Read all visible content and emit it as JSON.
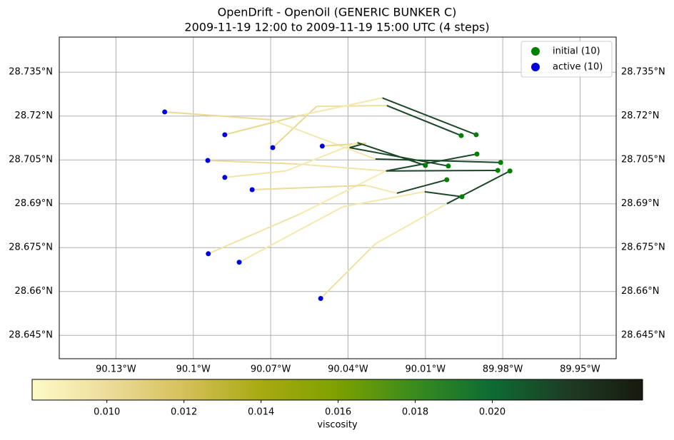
{
  "chart_data": {
    "type": "trajectory",
    "title": "OpenDrift - OpenOil (GENERIC BUNKER C)",
    "subtitle": "2009-11-19 12:00 to 2009-11-19 15:00 UTC (4 steps)",
    "xlim": [
      -90.152,
      -89.936
    ],
    "ylim": [
      28.637,
      28.747
    ],
    "xticks": [
      {
        "value": -90.13,
        "label": "90.13°W"
      },
      {
        "value": -90.1,
        "label": "90.1°W"
      },
      {
        "value": -90.07,
        "label": "90.07°W"
      },
      {
        "value": -90.04,
        "label": "90.04°W"
      },
      {
        "value": -90.01,
        "label": "90.01°W"
      },
      {
        "value": -89.98,
        "label": "89.98°W"
      },
      {
        "value": -89.95,
        "label": "89.95°W"
      }
    ],
    "yticks": [
      {
        "value": 28.645,
        "label": "28.645°N"
      },
      {
        "value": 28.66,
        "label": "28.66°N"
      },
      {
        "value": 28.675,
        "label": "28.675°N"
      },
      {
        "value": 28.69,
        "label": "28.69°N"
      },
      {
        "value": 28.705,
        "label": "28.705°N"
      },
      {
        "value": 28.72,
        "label": "28.72°N"
      },
      {
        "value": 28.735,
        "label": "28.735°N"
      }
    ],
    "grid": true,
    "legend": "upper right",
    "markers": [
      {
        "name": "initial (10)",
        "color": "#008000"
      },
      {
        "name": "active (10)",
        "color": "#0000dd"
      }
    ],
    "trajectories": [
      {
        "lon": [
          -89.9961,
          -90.025,
          -90.0522,
          -90.0692
        ],
        "lat": [
          28.7133,
          28.7236,
          28.7233,
          28.7092
        ],
        "viscosity": [
          0.0215,
          0.0098,
          0.0103,
          0.0105
        ]
      },
      {
        "lon": [
          -89.9903,
          -90.0267,
          -90.0586,
          -90.0878
        ],
        "lat": [
          28.7136,
          28.7262,
          28.7202,
          28.7136
        ],
        "viscosity": [
          0.0215,
          0.0092,
          0.0104,
          0.0106
        ]
      },
      {
        "lon": [
          -89.99,
          -90.0253,
          -90.0597,
          -90.0944
        ],
        "lat": [
          28.707,
          28.7012,
          28.7036,
          28.7048
        ],
        "viscosity": [
          0.0215,
          0.0095,
          0.0101,
          0.0106
        ]
      },
      {
        "lon": [
          -89.9808,
          -90.0294,
          -90.0697,
          -90.1111
        ],
        "lat": [
          28.7041,
          28.7053,
          28.7187,
          28.7214
        ],
        "viscosity": [
          0.0215,
          0.0093,
          0.0102,
          0.0105
        ]
      },
      {
        "lon": [
          -89.9819,
          -90.0253,
          -90.0586,
          -90.0942
        ],
        "lat": [
          28.7014,
          28.7012,
          28.6865,
          28.6729
        ],
        "viscosity": [
          0.0215,
          0.0091,
          0.0096,
          0.0103
        ]
      },
      {
        "lon": [
          -89.9772,
          -90.0017,
          -90.0294,
          -90.0506
        ],
        "lat": [
          28.7012,
          28.69,
          28.6763,
          28.6576
        ],
        "viscosity": [
          0.0215,
          0.0092,
          0.0097,
          0.0106
        ]
      },
      {
        "lon": [
          -90.0011,
          -90.0394,
          -90.0331,
          -90.05
        ],
        "lat": [
          28.7029,
          28.7092,
          28.7107,
          28.7097
        ],
        "viscosity": [
          0.0215,
          0.0215,
          0.0104,
          0.0104
        ]
      },
      {
        "lon": [
          -90.01,
          -90.0364,
          -90.0642,
          -90.0878
        ],
        "lat": [
          28.7031,
          28.7109,
          28.7012,
          28.699
        ],
        "viscosity": [
          0.0215,
          0.0092,
          0.0095,
          0.0104
        ]
      },
      {
        "lon": [
          -90.0017,
          -90.0211,
          -90.0331,
          -90.0772
        ],
        "lat": [
          28.6982,
          28.6936,
          28.6963,
          28.6948
        ],
        "viscosity": [
          0.0215,
          0.0093,
          0.0101,
          0.0105
        ]
      },
      {
        "lon": [
          -89.9958,
          -90.0103,
          -90.0419,
          -90.0822
        ],
        "lat": [
          28.6924,
          28.6941,
          28.689,
          28.67
        ],
        "viscosity": [
          0.0215,
          0.0093,
          0.0092,
          0.0097
        ]
      }
    ],
    "colorbar": {
      "label": "viscosity",
      "lim": [
        0.00806,
        0.0239
      ],
      "ticks": [
        {
          "value": 0.01,
          "label": "0.010"
        },
        {
          "value": 0.012,
          "label": "0.012"
        },
        {
          "value": 0.014,
          "label": "0.014"
        },
        {
          "value": 0.016,
          "label": "0.016"
        },
        {
          "value": 0.018,
          "label": "0.018"
        },
        {
          "value": 0.02,
          "label": "0.020"
        }
      ],
      "colors": [
        "#fefbc6",
        "#ecdc9a",
        "#d4c05a",
        "#a8aa12",
        "#7ea000",
        "#3a8c1e",
        "#0c6d33",
        "#1e3d24",
        "#17190f"
      ]
    }
  }
}
